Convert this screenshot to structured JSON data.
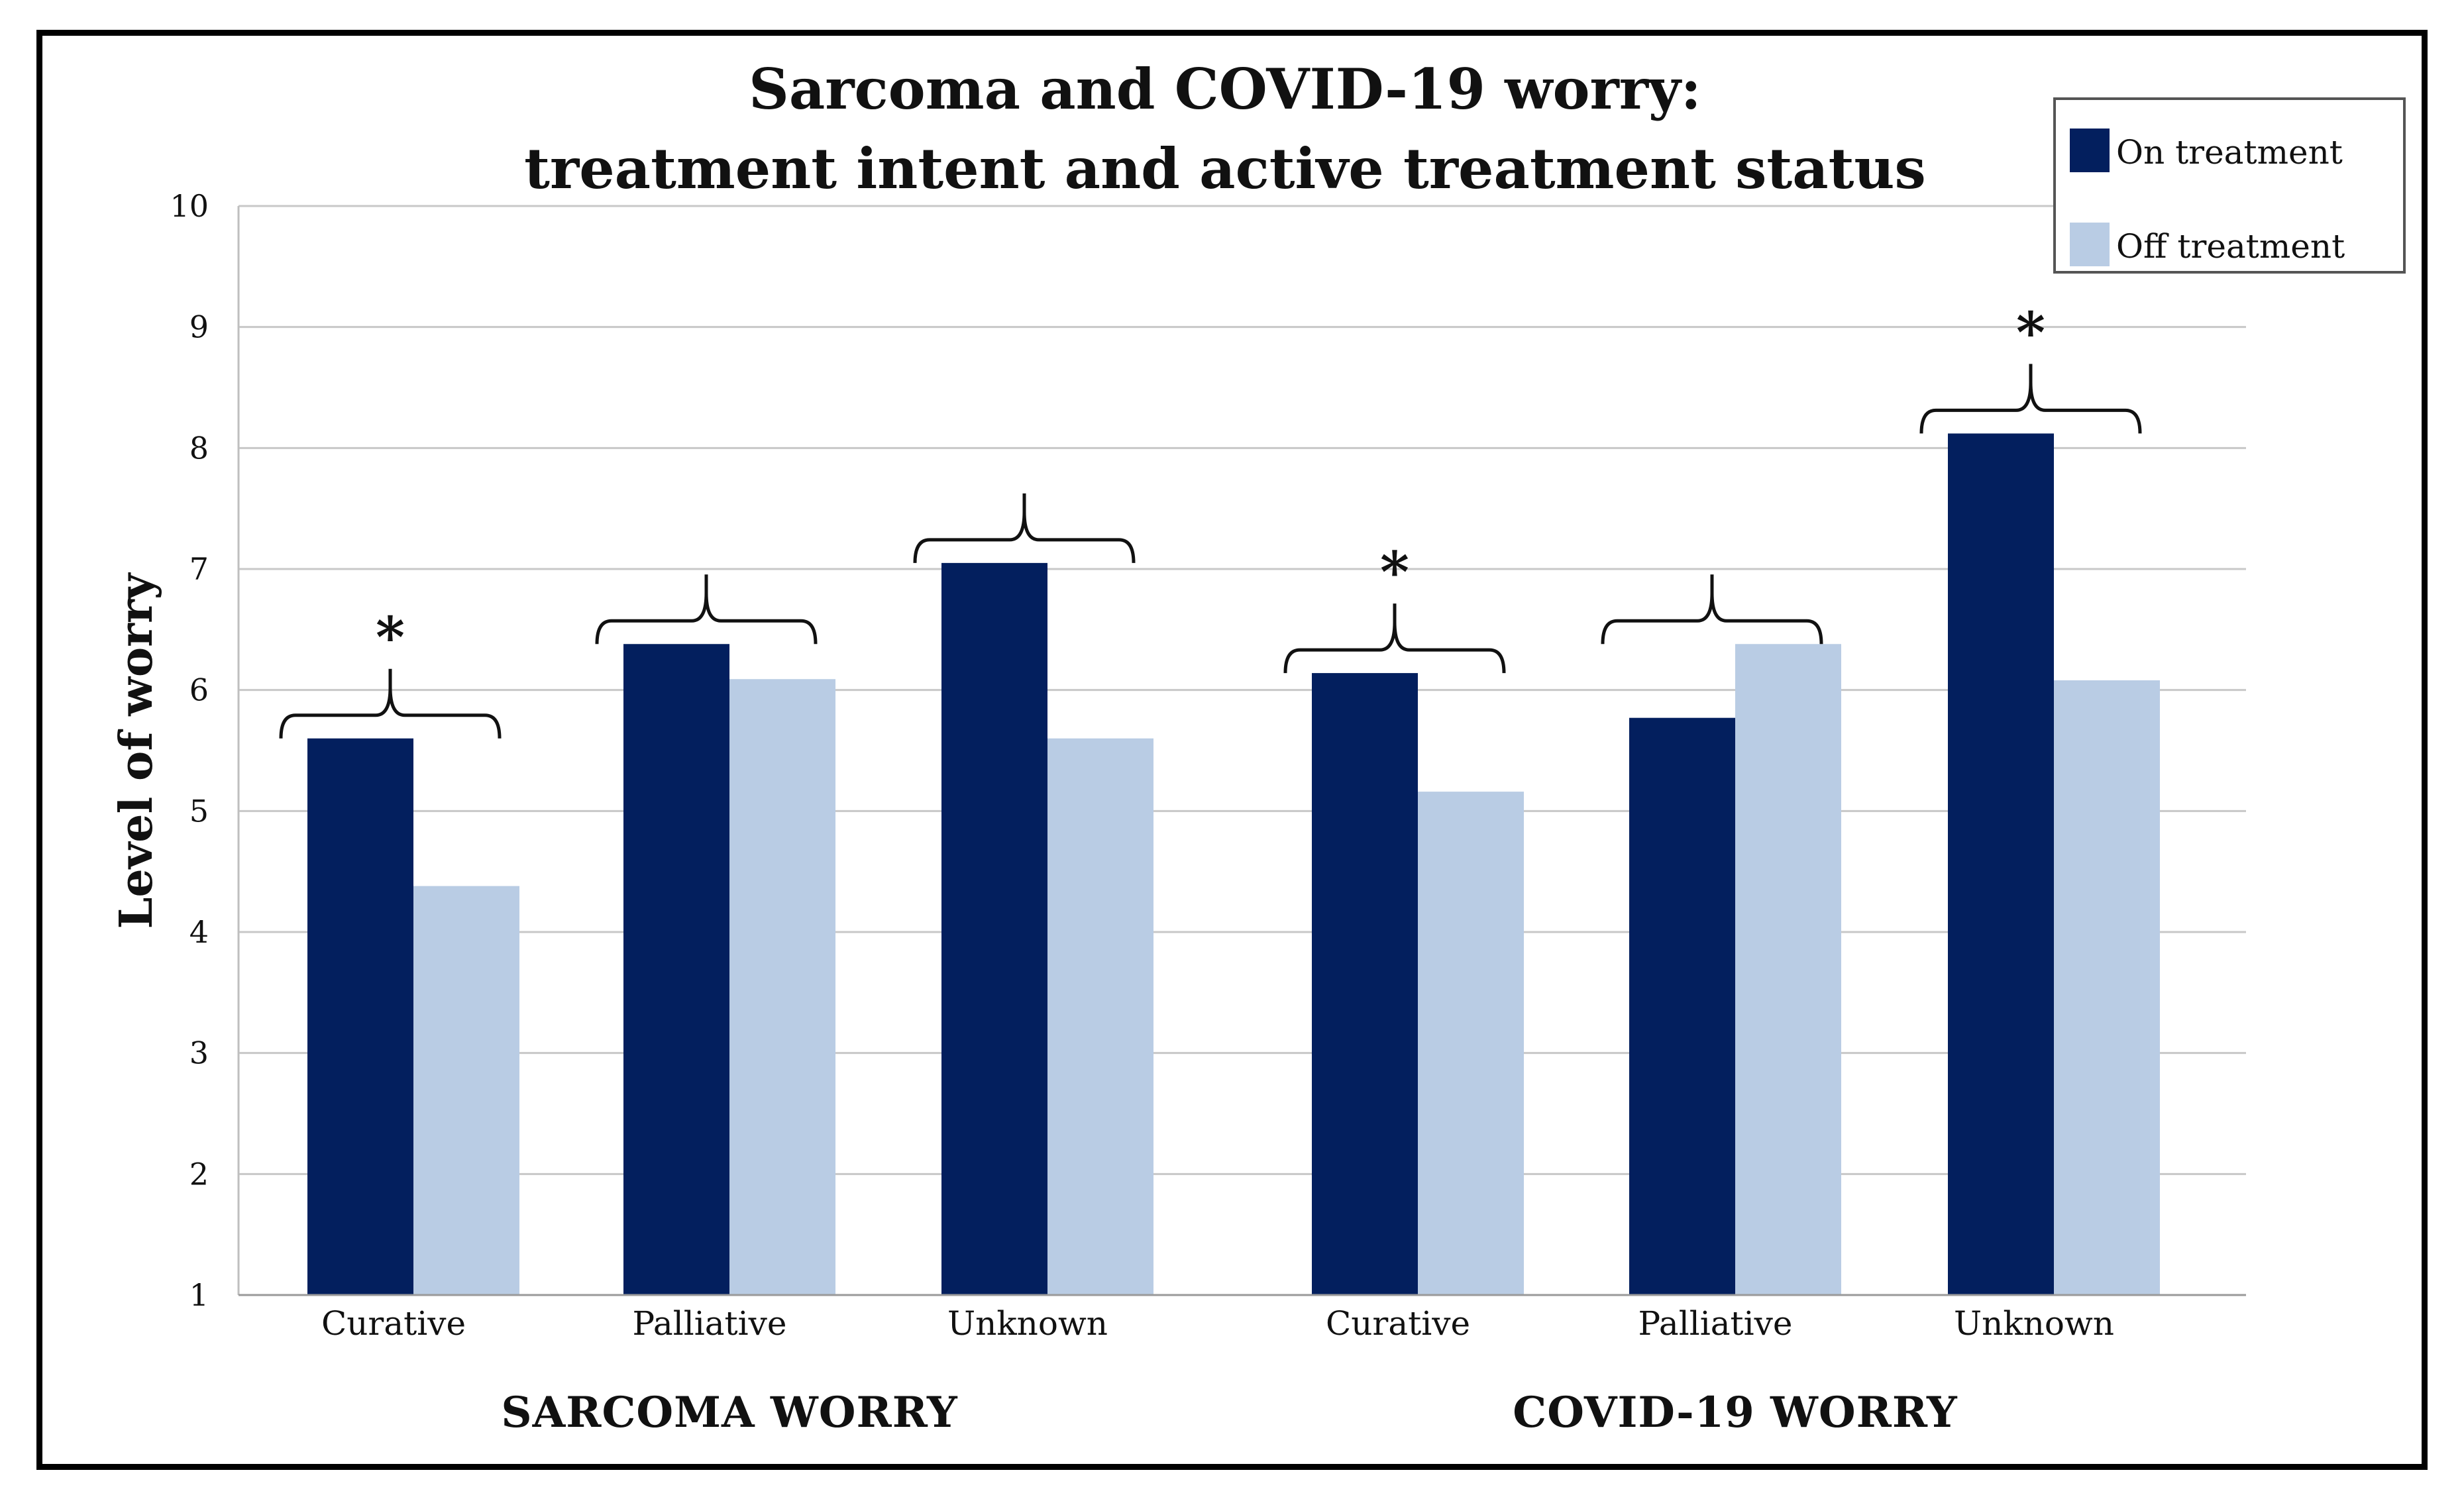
{
  "chart_data": {
    "type": "bar",
    "title_lines": [
      "Sarcoma and COVID-19 worry:",
      "treatment intent and active treatment status"
    ],
    "ylabel": "Level of worry",
    "ylim": [
      1,
      10
    ],
    "yticks": [
      "1",
      "2",
      "3",
      "4",
      "5",
      "6",
      "7",
      "8",
      "9",
      "10"
    ],
    "legend_position": "top-right",
    "groups": [
      {
        "label": "SARCOMA WORRY",
        "categories": [
          "Curative",
          "Palliative",
          "Unknown"
        ]
      },
      {
        "label": "COVID-19 WORRY",
        "categories": [
          "Curative",
          "Palliative",
          "Unknown"
        ]
      }
    ],
    "categories": [
      "Curative",
      "Palliative",
      "Unknown",
      "Curative",
      "Palliative",
      "Unknown"
    ],
    "series": [
      {
        "name": "On treatment",
        "color": "#031f5e",
        "values": [
          5.6,
          6.38,
          7.05,
          6.14,
          5.77,
          8.12
        ]
      },
      {
        "name": "Off treatment",
        "color": "#b9cce4",
        "values": [
          4.38,
          6.09,
          5.6,
          5.16,
          6.38,
          6.08
        ]
      }
    ],
    "significance": [
      {
        "category_index": 0,
        "marker": "*"
      },
      {
        "category_index": 1,
        "marker": ""
      },
      {
        "category_index": 2,
        "marker": ""
      },
      {
        "category_index": 3,
        "marker": "*"
      },
      {
        "category_index": 4,
        "marker": ""
      },
      {
        "category_index": 5,
        "marker": "*"
      }
    ]
  }
}
